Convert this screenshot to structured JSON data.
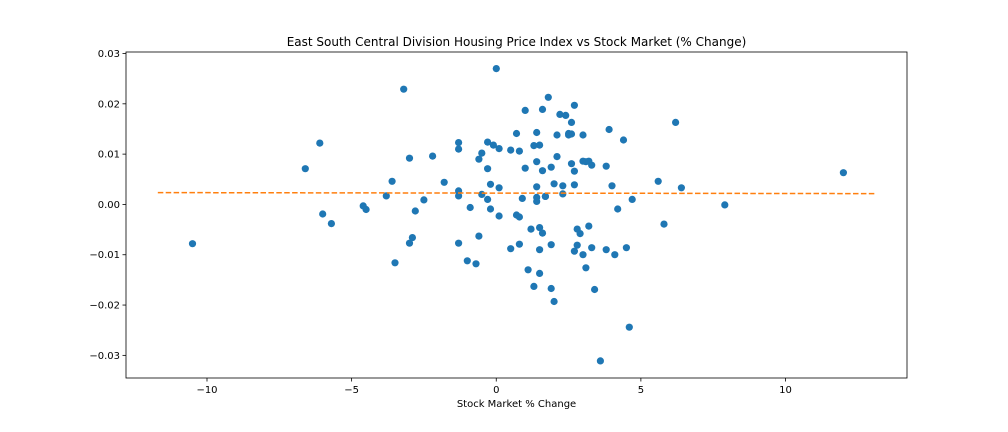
{
  "chart_data": {
    "type": "scatter",
    "title": "East South Central Division Housing Price Index vs Stock Market (% Change)",
    "xlabel": "Stock Market % Change",
    "ylabel": "",
    "xlim": [
      -12.8,
      14.2
    ],
    "ylim": [
      -0.0345,
      0.0303
    ],
    "x_ticks": [
      -10,
      -5,
      0,
      5,
      10
    ],
    "x_tick_labels": [
      "−10",
      "−5",
      "0",
      "5",
      "10"
    ],
    "y_ticks": [
      0.03,
      0.02,
      0.01,
      0.0,
      -0.01,
      -0.02,
      -0.03
    ],
    "y_tick_labels": [
      "0.03",
      "0.02",
      "0.01",
      "0.00",
      "−0.01",
      "−0.02",
      "−0.03"
    ],
    "grid": false,
    "legend": "none",
    "colors": {
      "points": "#1f77b4",
      "trend": "#ff7f0e"
    },
    "points": [
      [
        -10.5,
        -0.0078
      ],
      [
        -6.6,
        0.0071
      ],
      [
        -6.1,
        0.0122
      ],
      [
        -6.0,
        -0.0019
      ],
      [
        -5.7,
        -0.0038
      ],
      [
        -4.6,
        -0.0003
      ],
      [
        -4.5,
        -0.001
      ],
      [
        -3.8,
        0.0017
      ],
      [
        -3.6,
        0.0046
      ],
      [
        -3.5,
        -0.0116
      ],
      [
        -3.2,
        0.0229
      ],
      [
        -3.0,
        0.0092
      ],
      [
        -3.0,
        -0.0077
      ],
      [
        -2.9,
        -0.0066
      ],
      [
        -2.8,
        -0.0013
      ],
      [
        -2.5,
        0.0009
      ],
      [
        -2.2,
        0.0096
      ],
      [
        -1.8,
        0.0044
      ],
      [
        -1.3,
        0.0123
      ],
      [
        -1.3,
        0.011
      ],
      [
        -1.3,
        0.0027
      ],
      [
        -1.3,
        0.0017
      ],
      [
        -1.3,
        -0.0077
      ],
      [
        -1.0,
        -0.0112
      ],
      [
        -0.9,
        -0.0006
      ],
      [
        -0.7,
        -0.0118
      ],
      [
        -0.6,
        -0.0063
      ],
      [
        -0.6,
        0.009
      ],
      [
        -0.5,
        0.002
      ],
      [
        -0.5,
        0.0102
      ],
      [
        -0.3,
        0.0071
      ],
      [
        -0.3,
        0.001
      ],
      [
        -0.3,
        0.0124
      ],
      [
        -0.2,
        0.004
      ],
      [
        -0.2,
        -0.0009
      ],
      [
        -0.1,
        0.0118
      ],
      [
        0.0,
        0.027
      ],
      [
        0.1,
        0.0111
      ],
      [
        0.1,
        0.0033
      ],
      [
        0.1,
        -0.0023
      ],
      [
        0.5,
        0.0108
      ],
      [
        0.5,
        -0.0088
      ],
      [
        0.7,
        -0.0021
      ],
      [
        0.7,
        0.0141
      ],
      [
        0.8,
        0.0106
      ],
      [
        0.8,
        -0.0025
      ],
      [
        0.8,
        -0.0079
      ],
      [
        0.9,
        0.0012
      ],
      [
        1.0,
        0.0072
      ],
      [
        1.0,
        0.0187
      ],
      [
        1.1,
        -0.013
      ],
      [
        1.2,
        -0.0049
      ],
      [
        1.3,
        -0.0163
      ],
      [
        1.3,
        0.0117
      ],
      [
        1.4,
        0.0143
      ],
      [
        1.4,
        0.0085
      ],
      [
        1.4,
        0.0035
      ],
      [
        1.4,
        0.0014
      ],
      [
        1.4,
        0.0006
      ],
      [
        1.5,
        -0.0137
      ],
      [
        1.5,
        -0.009
      ],
      [
        1.5,
        0.0118
      ],
      [
        1.5,
        -0.0046
      ],
      [
        1.6,
        0.0189
      ],
      [
        1.6,
        -0.0057
      ],
      [
        1.6,
        0.0067
      ],
      [
        1.7,
        0.0016
      ],
      [
        1.7,
        0.0016
      ],
      [
        1.8,
        0.0213
      ],
      [
        1.9,
        -0.008
      ],
      [
        1.9,
        0.0074
      ],
      [
        1.9,
        -0.0167
      ],
      [
        2.0,
        -0.0193
      ],
      [
        2.0,
        0.0041
      ],
      [
        2.1,
        0.0138
      ],
      [
        2.1,
        0.0095
      ],
      [
        2.2,
        0.0179
      ],
      [
        2.3,
        0.0021
      ],
      [
        2.3,
        0.0037
      ],
      [
        2.4,
        0.0177
      ],
      [
        2.5,
        0.0141
      ],
      [
        2.5,
        0.0138
      ],
      [
        2.6,
        0.0081
      ],
      [
        2.6,
        0.0163
      ],
      [
        2.6,
        0.014
      ],
      [
        2.7,
        -0.0093
      ],
      [
        2.7,
        0.0197
      ],
      [
        2.7,
        0.0039
      ],
      [
        2.7,
        0.0066
      ],
      [
        2.8,
        -0.0049
      ],
      [
        2.8,
        -0.0081
      ],
      [
        2.9,
        -0.0058
      ],
      [
        3.0,
        0.0138
      ],
      [
        3.0,
        0.0086
      ],
      [
        3.0,
        -0.01
      ],
      [
        3.1,
        0.0085
      ],
      [
        3.1,
        -0.0126
      ],
      [
        3.2,
        0.0086
      ],
      [
        3.2,
        -0.0043
      ],
      [
        3.3,
        0.0078
      ],
      [
        3.3,
        -0.0086
      ],
      [
        3.4,
        -0.0169
      ],
      [
        3.6,
        -0.0311
      ],
      [
        3.8,
        0.0076
      ],
      [
        3.8,
        -0.009
      ],
      [
        3.9,
        0.0149
      ],
      [
        4.0,
        0.0037
      ],
      [
        4.1,
        -0.01
      ],
      [
        4.2,
        -0.0009
      ],
      [
        4.4,
        0.0128
      ],
      [
        4.5,
        -0.0086
      ],
      [
        4.6,
        -0.0244
      ],
      [
        4.7,
        0.001
      ],
      [
        5.6,
        0.0046
      ],
      [
        5.8,
        -0.0039
      ],
      [
        6.2,
        0.0163
      ],
      [
        6.4,
        0.0033
      ],
      [
        7.9,
        -0.0001
      ],
      [
        12.0,
        0.0063
      ]
    ],
    "trend_line": {
      "x": [
        -11.7,
        13.1
      ],
      "y": [
        0.00235,
        0.00215
      ]
    }
  }
}
